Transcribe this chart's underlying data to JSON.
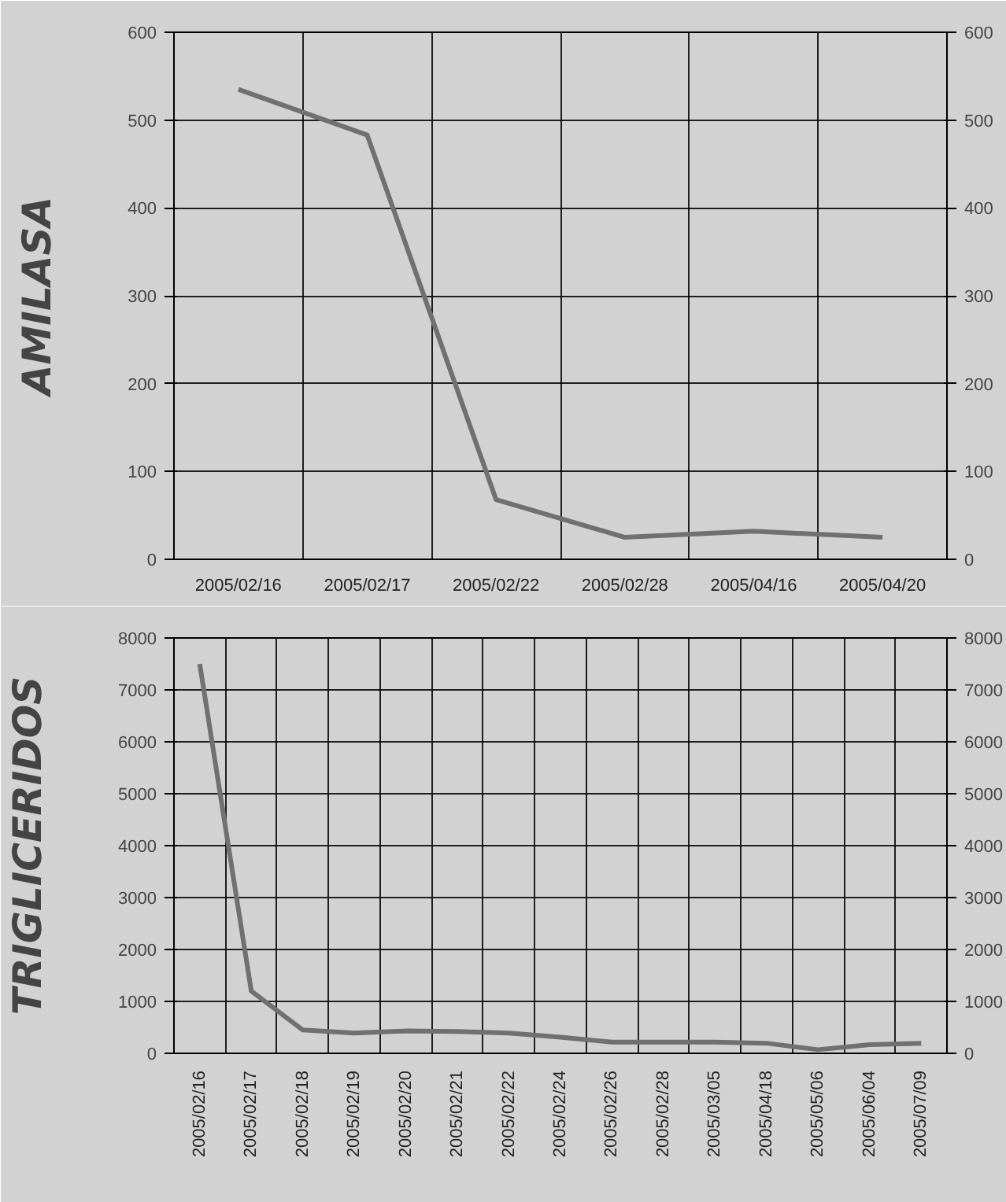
{
  "chart_data": [
    {
      "type": "line",
      "ylabel": "AMILASA",
      "categories": [
        "2005/02/16",
        "2005/02/17",
        "2005/02/22",
        "2005/02/28",
        "2005/04/16",
        "2005/04/20"
      ],
      "values": [
        535,
        483,
        68,
        25,
        32,
        25
      ],
      "color": "#707070",
      "ylim": [
        0,
        600
      ],
      "yticks": [
        0,
        100,
        200,
        300,
        400,
        500,
        600
      ],
      "y2lim": [
        0,
        600
      ],
      "y2ticks": [
        0,
        100,
        200,
        300,
        400,
        500,
        600
      ],
      "grid": true
    },
    {
      "type": "line",
      "ylabel": "TRIGLICERIDOS",
      "categories": [
        "2005/02/16",
        "2005/02/17",
        "2005/02/18",
        "2005/02/19",
        "2005/02/20",
        "2005/02/21",
        "2005/02/22",
        "2005/02/24",
        "2005/02/26",
        "2005/02/28",
        "2005/03/05",
        "2005/04/18",
        "2005/05/06",
        "2005/06/04",
        "2005/07/09"
      ],
      "values": [
        7500,
        1200,
        450,
        390,
        430,
        420,
        390,
        310,
        215,
        215,
        215,
        195,
        70,
        165,
        195
      ],
      "color": "#707070",
      "ylim": [
        0,
        8000
      ],
      "yticks": [
        0,
        1000,
        2000,
        3000,
        4000,
        5000,
        6000,
        7000,
        8000
      ],
      "y2lim": [
        0,
        8000
      ],
      "y2ticks": [
        0,
        1000,
        2000,
        3000,
        4000,
        5000,
        6000,
        7000,
        8000
      ],
      "grid": true
    }
  ]
}
